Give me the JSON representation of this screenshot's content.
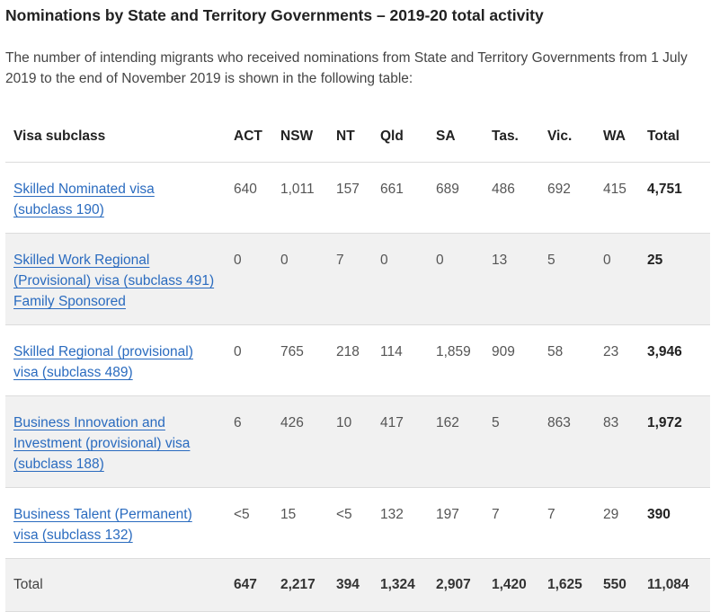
{
  "heading": "Nominations by State and Territory Governments – 2019-20 total activity",
  "intro": "The number of intending migrants who received nominations from State and Territory Governments from 1 July 2019 to the end of November 2019 is shown in the following table:",
  "table": {
    "headers": [
      "Visa subclass",
      "ACT",
      "NSW",
      "NT",
      "Qld",
      "SA",
      "Tas.",
      "Vic.",
      "WA",
      "Total"
    ],
    "rows": [
      {
        "visa": [
          "Skilled Nominated visa",
          "(subclass 190)"
        ],
        "values": [
          "640",
          "1,011",
          "157",
          "661",
          "689",
          "486",
          "692",
          "415"
        ],
        "total": "4,751"
      },
      {
        "visa": [
          "Skilled Work Regional",
          "(Provisional) visa (subclass 491)",
          "Family Sponsored"
        ],
        "values": [
          "0",
          "0",
          "7",
          "0",
          "0",
          "13",
          "5",
          "0"
        ],
        "total": "25"
      },
      {
        "visa": [
          "Skilled Regional (provisional)",
          "visa (subclass 489)"
        ],
        "values": [
          "0",
          "765",
          "218",
          "114",
          "1,859",
          "909",
          "58",
          "23"
        ],
        "total": "3,946"
      },
      {
        "visa": [
          "Business Innovation and",
          "Investment (provisional) visa",
          "(subclass 188)"
        ],
        "values": [
          "6",
          "426",
          "10",
          "417",
          "162",
          "5",
          "863",
          "83"
        ],
        "total": "1,972"
      },
      {
        "visa": [
          "Business Talent (Permanent)",
          "visa (subclass 132)"
        ],
        "values": [
          "<5",
          "15",
          "<5",
          "132",
          "197",
          "7",
          "7",
          "29"
        ],
        "total": "390"
      }
    ],
    "totals": {
      "label": "Total",
      "values": [
        "647",
        "2,217",
        "394",
        "1,324",
        "2,907",
        "1,420",
        "1,625",
        "550"
      ],
      "total": "11,084"
    }
  },
  "colors": {
    "link": "#2a6bbf",
    "row_shade": "#f1f1f1",
    "border": "#dcdcdc"
  }
}
